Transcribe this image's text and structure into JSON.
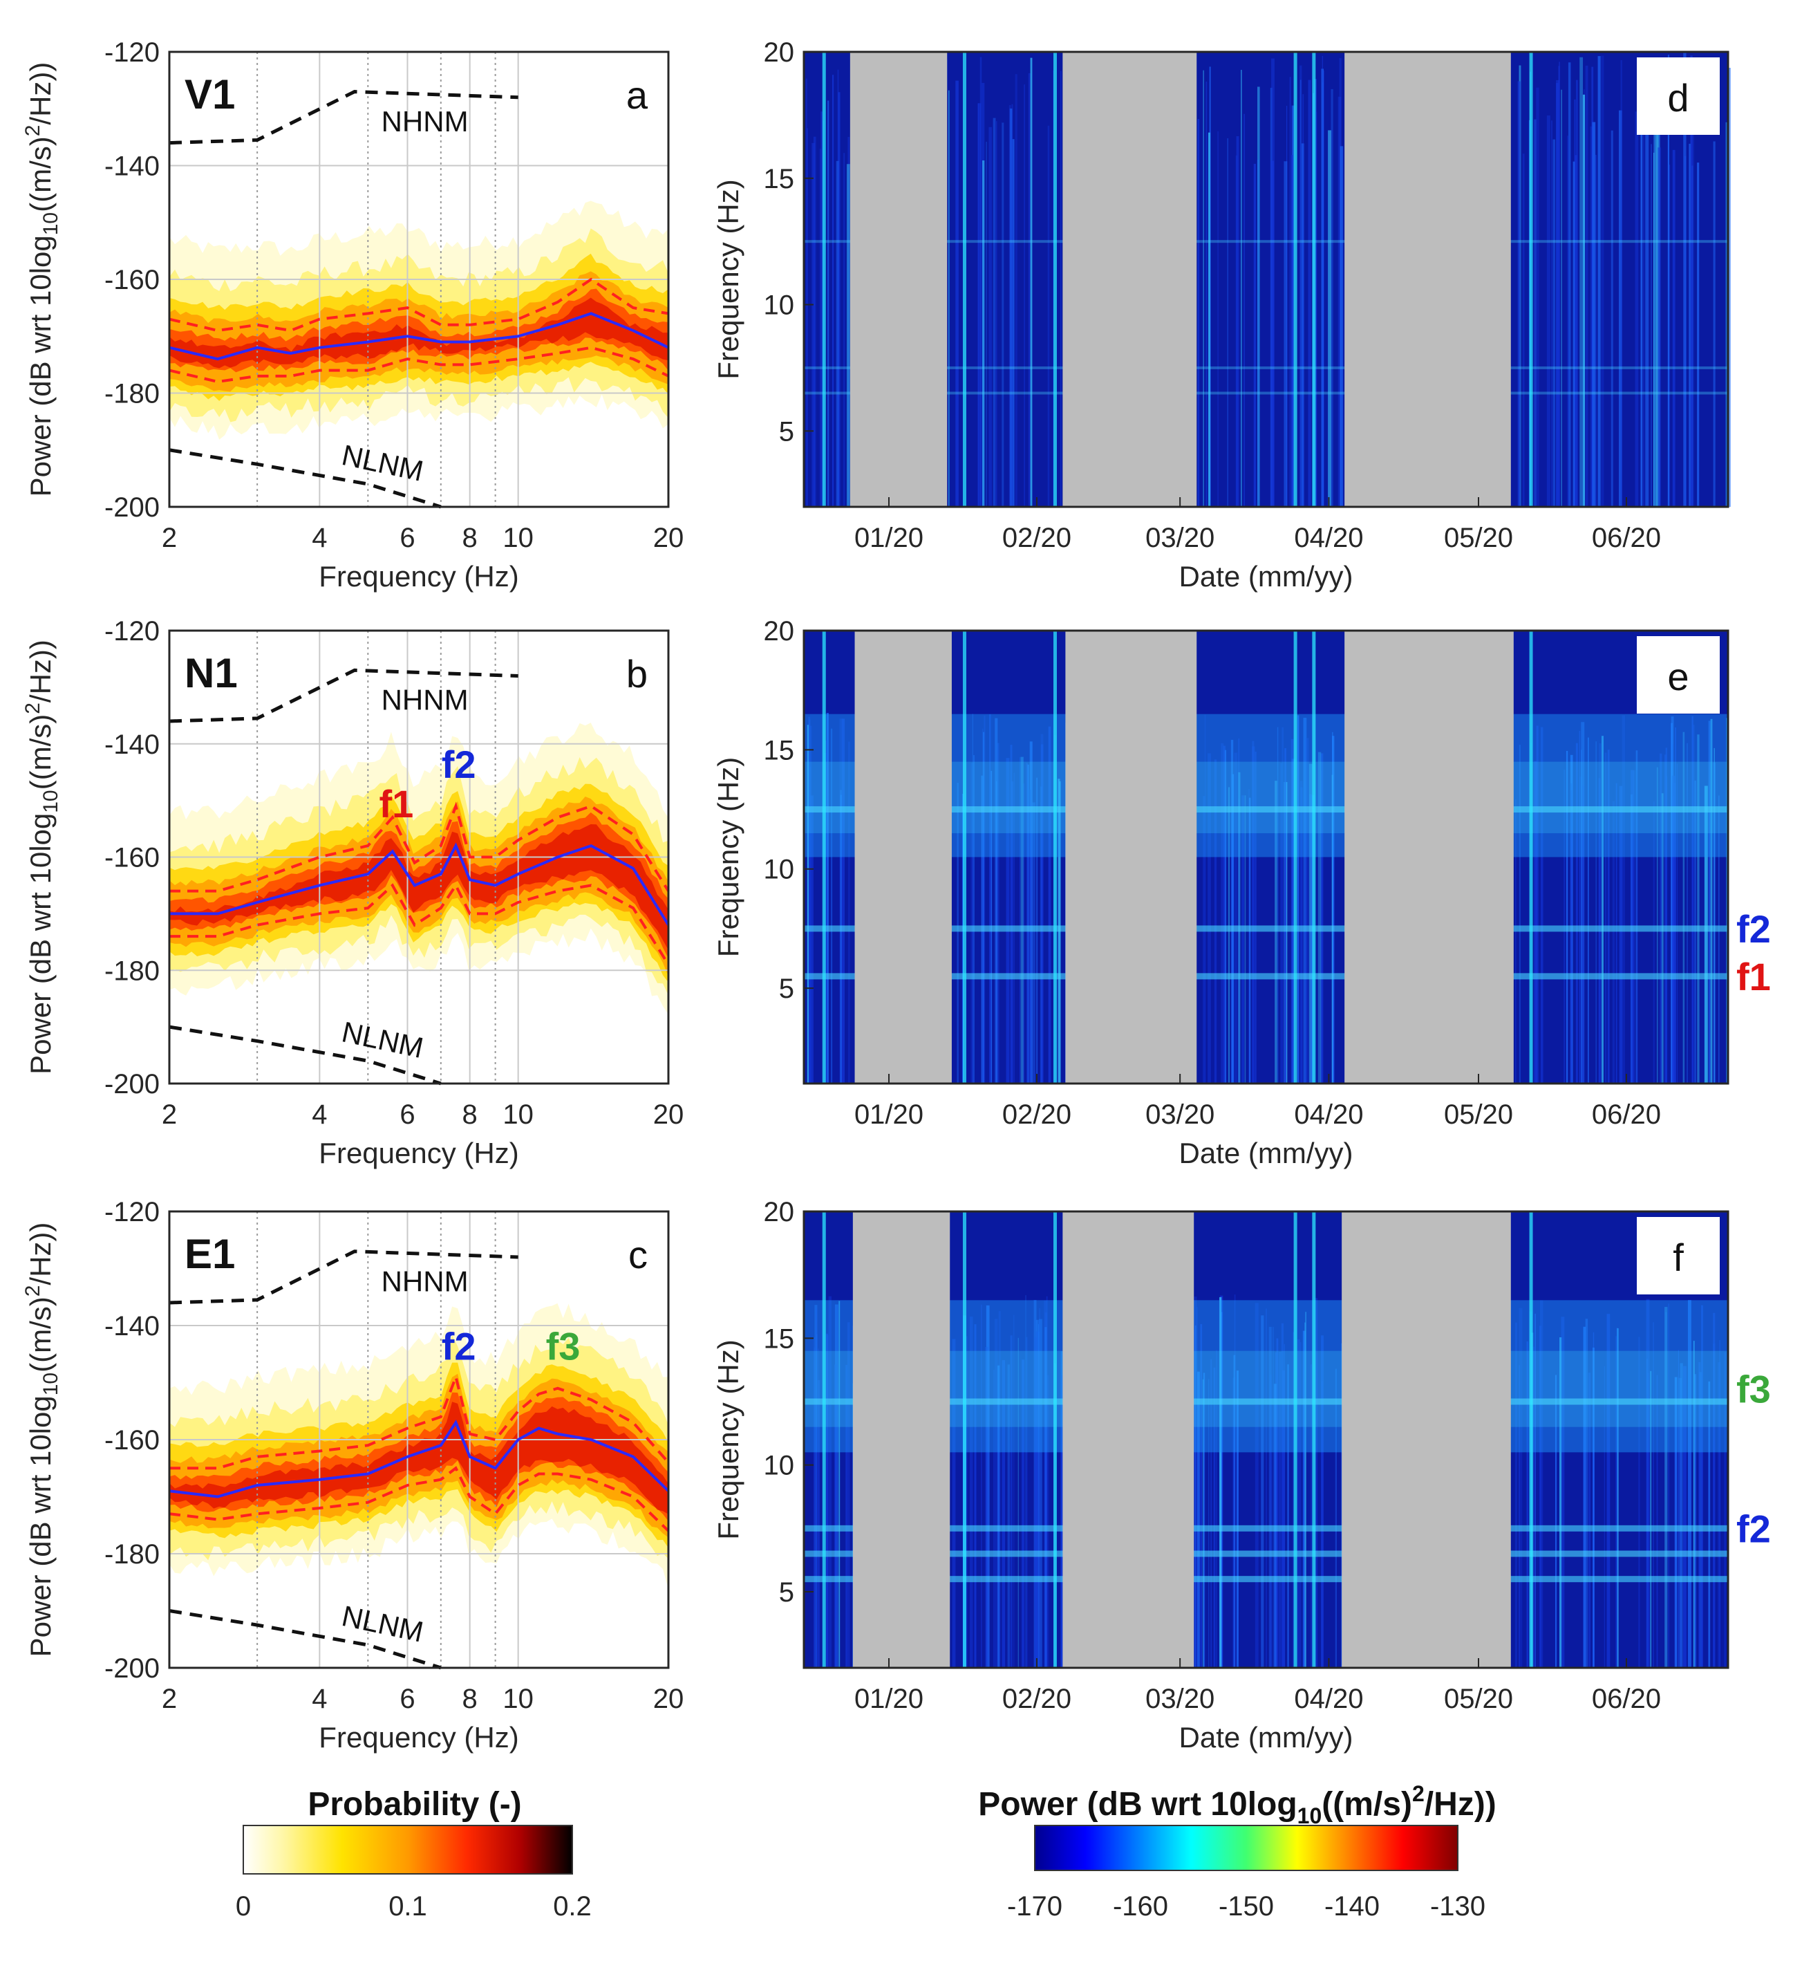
{
  "colors": {
    "nhnm_line": "#111111",
    "median_line": "#2a2aff",
    "percentile_line": "#ff2020",
    "f1": "#e01414",
    "f2": "#1428d8",
    "f3": "#3aa83a",
    "gap_fill": "#bdbdbd",
    "spec_background": "#0a1aa0"
  },
  "chart_data": [
    {
      "type": "area",
      "panel": "a",
      "station": "V1",
      "xlabel": "Frequency (Hz)",
      "ylabel": "Power (dB wrt 10log10((m/s)2/Hz))",
      "xscale": "log",
      "xlim": [
        2,
        20
      ],
      "ylim": [
        -200,
        -120
      ],
      "xticks": [
        2,
        4,
        6,
        8,
        10,
        20
      ],
      "yticks": [
        -120,
        -140,
        -160,
        -180,
        -200
      ],
      "reference_models": [
        {
          "name": "NHNM",
          "x": [
            2,
            3,
            4.7,
            10
          ],
          "y": [
            -136,
            -135.5,
            -127,
            -128
          ]
        },
        {
          "name": "NLNM",
          "x": [
            2,
            3,
            5,
            7
          ],
          "y": [
            -190,
            -192.5,
            -196,
            -200
          ]
        }
      ],
      "series": [
        {
          "name": "median",
          "x": [
            2,
            2.5,
            3,
            3.5,
            4,
            5,
            6,
            7,
            8,
            10,
            12,
            14,
            17,
            20
          ],
          "values": [
            -172,
            -174,
            -172,
            -173,
            -172,
            -171,
            -170,
            -171,
            -171,
            -170,
            -168,
            -166,
            -169,
            -172
          ]
        },
        {
          "name": "upper-percentile",
          "x": [
            2,
            2.5,
            3,
            3.5,
            4,
            5,
            6,
            7,
            8,
            10,
            12,
            14,
            17,
            20
          ],
          "values": [
            -167,
            -169,
            -168,
            -169,
            -167,
            -166,
            -165,
            -168,
            -168,
            -167,
            -164,
            -160,
            -165,
            -166
          ]
        },
        {
          "name": "lower-percentile",
          "x": [
            2,
            2.5,
            3,
            3.5,
            4,
            5,
            6,
            7,
            8,
            10,
            12,
            14,
            17,
            20
          ],
          "values": [
            -176,
            -178,
            -177,
            -177,
            -176,
            -176,
            -174,
            -175,
            -175,
            -174,
            -173,
            -172,
            -174,
            -177
          ]
        }
      ]
    },
    {
      "type": "area",
      "panel": "b",
      "station": "N1",
      "xlabel": "Frequency (Hz)",
      "ylabel": "Power (dB wrt 10log10((m/s)2/Hz))",
      "xscale": "log",
      "xlim": [
        2,
        20
      ],
      "ylim": [
        -200,
        -120
      ],
      "xticks": [
        2,
        4,
        6,
        8,
        10,
        20
      ],
      "yticks": [
        -120,
        -140,
        -160,
        -180,
        -200
      ],
      "annotations": [
        "f1",
        "f2"
      ],
      "reference_models": [
        {
          "name": "NHNM",
          "x": [
            2,
            3,
            4.7,
            10
          ],
          "y": [
            -136,
            -135.5,
            -127,
            -128
          ]
        },
        {
          "name": "NLNM",
          "x": [
            2,
            3,
            5,
            7
          ],
          "y": [
            -190,
            -192.5,
            -196,
            -200
          ]
        }
      ],
      "series": [
        {
          "name": "median",
          "x": [
            2,
            2.5,
            3,
            4,
            5,
            5.6,
            6.2,
            7,
            7.5,
            8,
            9,
            10,
            12,
            14,
            17,
            20
          ],
          "values": [
            -170,
            -170,
            -168,
            -165,
            -163,
            -159,
            -165,
            -163,
            -158,
            -164,
            -165,
            -163,
            -160,
            -158,
            -162,
            -172
          ]
        },
        {
          "name": "upper-percentile",
          "x": [
            2,
            2.5,
            3,
            4,
            5,
            5.6,
            6.2,
            7,
            7.5,
            8,
            9,
            10,
            12,
            14,
            17,
            20
          ],
          "values": [
            -166,
            -166,
            -164,
            -160,
            -158,
            -153,
            -161,
            -158,
            -151,
            -160,
            -160,
            -157,
            -153,
            -151,
            -156,
            -166
          ]
        },
        {
          "name": "lower-percentile",
          "x": [
            2,
            2.5,
            3,
            4,
            5,
            5.6,
            6.2,
            7,
            7.5,
            8,
            9,
            10,
            12,
            14,
            17,
            20
          ],
          "values": [
            -174,
            -174,
            -172,
            -170,
            -169,
            -165,
            -172,
            -169,
            -165,
            -170,
            -170,
            -168,
            -166,
            -165,
            -169,
            -179
          ]
        }
      ]
    },
    {
      "type": "area",
      "panel": "c",
      "station": "E1",
      "xlabel": "Frequency (Hz)",
      "ylabel": "Power (dB wrt 10log10((m/s)2/Hz))",
      "xscale": "log",
      "xlim": [
        2,
        20
      ],
      "ylim": [
        -200,
        -120
      ],
      "xticks": [
        2,
        4,
        6,
        8,
        10,
        20
      ],
      "yticks": [
        -120,
        -140,
        -160,
        -180,
        -200
      ],
      "annotations": [
        "f2",
        "f3"
      ],
      "reference_models": [
        {
          "name": "NHNM",
          "x": [
            2,
            3,
            4.7,
            10
          ],
          "y": [
            -136,
            -135.5,
            -127,
            -128
          ]
        },
        {
          "name": "NLNM",
          "x": [
            2,
            3,
            5,
            7
          ],
          "y": [
            -190,
            -192.5,
            -196,
            -200
          ]
        }
      ],
      "series": [
        {
          "name": "median",
          "x": [
            2,
            2.5,
            3,
            4,
            5,
            6,
            7,
            7.5,
            8,
            9,
            10,
            11,
            12,
            14,
            17,
            20
          ],
          "values": [
            -169,
            -170,
            -168,
            -167,
            -166,
            -163,
            -161,
            -157,
            -163,
            -165,
            -160,
            -158,
            -159,
            -160,
            -163,
            -169
          ]
        },
        {
          "name": "upper-percentile",
          "x": [
            2,
            2.5,
            3,
            4,
            5,
            6,
            7,
            7.5,
            8,
            9,
            10,
            11,
            12,
            14,
            17,
            20
          ],
          "values": [
            -165,
            -165,
            -163,
            -162,
            -161,
            -158,
            -156,
            -149,
            -159,
            -160,
            -155,
            -152,
            -151,
            -153,
            -157,
            -164
          ]
        },
        {
          "name": "lower-percentile",
          "x": [
            2,
            2.5,
            3,
            4,
            5,
            6,
            7,
            7.5,
            8,
            9,
            10,
            11,
            12,
            14,
            17,
            20
          ],
          "values": [
            -173,
            -174,
            -173,
            -172,
            -171,
            -168,
            -167,
            -165,
            -170,
            -173,
            -168,
            -166,
            -166,
            -167,
            -170,
            -176
          ]
        }
      ]
    },
    {
      "type": "heatmap",
      "panel": "d",
      "xlabel": "Date (mm/yy)",
      "ylabel": "Frequency (Hz)",
      "ylim": [
        2,
        20
      ],
      "yticks": [
        5,
        10,
        15,
        20
      ],
      "xticks": [
        "01/20",
        "02/20",
        "03/20",
        "04/20",
        "05/20",
        "06/20"
      ],
      "data_gaps": [
        [
          0.05,
          0.155
        ],
        [
          0.28,
          0.425
        ],
        [
          0.585,
          0.765
        ]
      ]
    },
    {
      "type": "heatmap",
      "panel": "e",
      "xlabel": "Date (mm/yy)",
      "ylabel": "Frequency (Hz)",
      "ylim": [
        1,
        20
      ],
      "yticks": [
        5,
        10,
        15,
        20
      ],
      "xticks": [
        "01/20",
        "02/20",
        "03/20",
        "04/20",
        "05/20",
        "06/20"
      ],
      "data_gaps": [
        [
          0.055,
          0.16
        ],
        [
          0.283,
          0.425
        ],
        [
          0.585,
          0.768
        ]
      ],
      "band_labels": [
        {
          "label": "f2",
          "freq": 7.5
        },
        {
          "label": "f1",
          "freq": 5.5
        }
      ]
    },
    {
      "type": "heatmap",
      "panel": "f",
      "xlabel": "Date (mm/yy)",
      "ylabel": "Frequency (Hz)",
      "ylim": [
        2,
        20
      ],
      "yticks": [
        5,
        10,
        15,
        20
      ],
      "xticks": [
        "01/20",
        "02/20",
        "03/20",
        "04/20",
        "05/20",
        "06/20"
      ],
      "data_gaps": [
        [
          0.053,
          0.158
        ],
        [
          0.28,
          0.422
        ],
        [
          0.582,
          0.765
        ]
      ],
      "band_labels": [
        {
          "label": "f3",
          "freq": 13
        },
        {
          "label": "f2",
          "freq": 7.5
        }
      ]
    }
  ],
  "colorbars": {
    "probability": {
      "title": "Probability (-)",
      "ticks": [
        "0",
        "0.1",
        "0.2"
      ]
    },
    "power": {
      "title_main": "Power (dB wrt 10log",
      "title_sub": "10",
      "title_tail": "((m/s)",
      "title_sup": "2",
      "title_end": "/Hz))",
      "ticks": [
        "-170",
        "-160",
        "-150",
        "-140",
        "-130"
      ]
    }
  },
  "text": {
    "ylabel_main": "Power (dB wrt 10log",
    "ylabel_sub": "10",
    "ylabel_tail": "((m/s)",
    "ylabel_sup": "2",
    "ylabel_end": "/Hz))"
  }
}
